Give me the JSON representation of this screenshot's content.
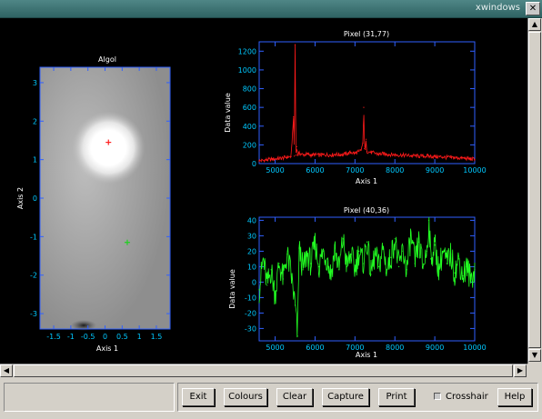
{
  "window": {
    "title": "xwindows",
    "close_glyph": "✕"
  },
  "image_panel": {
    "title": "Algol",
    "xlabel": "Axis 1",
    "ylabel": "Axis 2",
    "xticks": [
      "-1.5",
      "-1",
      "-0.5",
      "0",
      "0.5",
      "1",
      "1.5"
    ],
    "yticks": [
      "3",
      "2",
      "1",
      "0",
      "-1",
      "-2",
      "-3"
    ],
    "xlim": [
      -1.9,
      1.9
    ],
    "ylim": [
      -3.4,
      3.4
    ],
    "red_marker": {
      "x": 0.1,
      "y": 1.45
    },
    "green_marker": {
      "x": 0.65,
      "y": -1.15
    },
    "marker_colors": {
      "red": "#ff2020",
      "green": "#20d020"
    }
  },
  "chart_data": [
    {
      "type": "line",
      "title": "Pixel (31,77)",
      "xlabel": "Axis 1",
      "ylabel": "Data value",
      "xlim": [
        4600,
        10000
      ],
      "ylim": [
        0,
        1300
      ],
      "xticks": [
        "5000",
        "6000",
        "7000",
        "8000",
        "9000",
        "10000"
      ],
      "yticks": [
        "0",
        "200",
        "400",
        "600",
        "800",
        "1000",
        "1200"
      ],
      "color": "#ff1a1a",
      "x": [
        4600,
        4800,
        5000,
        5200,
        5300,
        5400,
        5460,
        5480,
        5500,
        5520,
        5540,
        5560,
        5600,
        5700,
        5800,
        5900,
        6000,
        6100,
        6200,
        6300,
        6400,
        6500,
        6600,
        6700,
        6800,
        6900,
        7000,
        7100,
        7150,
        7200,
        7220,
        7240,
        7260,
        7280,
        7300,
        7400,
        7500,
        7600,
        7700,
        7800,
        8000,
        8200,
        8400,
        8600,
        8800,
        9000,
        9200,
        9400,
        9600,
        9800,
        10000
      ],
      "y": [
        30,
        40,
        50,
        60,
        70,
        75,
        500,
        80,
        1270,
        90,
        180,
        90,
        110,
        95,
        100,
        90,
        95,
        90,
        95,
        95,
        90,
        100,
        95,
        100,
        105,
        120,
        110,
        130,
        140,
        220,
        600,
        160,
        150,
        260,
        130,
        120,
        110,
        100,
        105,
        100,
        95,
        90,
        85,
        80,
        80,
        75,
        70,
        65,
        60,
        55,
        45
      ]
    },
    {
      "type": "line",
      "title": "Pixel (40,36)",
      "xlabel": "Axis 1",
      "ylabel": "Data value",
      "xlim": [
        4600,
        10000
      ],
      "ylim": [
        -38,
        42
      ],
      "xticks": [
        "5000",
        "6000",
        "7000",
        "8000",
        "9000",
        "10000"
      ],
      "yticks": [
        "40",
        "30",
        "20",
        "10",
        "0",
        "-10",
        "-20",
        "-30"
      ],
      "color": "#22ff22",
      "x": [
        4600,
        4700,
        4800,
        4900,
        5000,
        5100,
        5200,
        5300,
        5400,
        5500,
        5560,
        5600,
        5700,
        5800,
        5900,
        6000,
        6100,
        6200,
        6300,
        6400,
        6500,
        6600,
        6700,
        6800,
        6900,
        7000,
        7100,
        7200,
        7300,
        7400,
        7500,
        7600,
        7700,
        7800,
        7900,
        8000,
        8100,
        8200,
        8300,
        8400,
        8500,
        8600,
        8700,
        8800,
        8850,
        8900,
        9000,
        9100,
        9200,
        9300,
        9400,
        9500,
        9600,
        9700,
        9800,
        9900,
        10000
      ],
      "y": [
        -5,
        15,
        -2,
        8,
        -8,
        12,
        2,
        18,
        5,
        -15,
        -35,
        22,
        8,
        18,
        12,
        25,
        10,
        20,
        15,
        5,
        22,
        8,
        28,
        10,
        18,
        8,
        20,
        12,
        26,
        5,
        18,
        10,
        22,
        8,
        16,
        28,
        10,
        20,
        8,
        30,
        12,
        26,
        10,
        20,
        40,
        15,
        24,
        8,
        20,
        12,
        18,
        6,
        15,
        4,
        10,
        2,
        8
      ]
    }
  ],
  "toolbar": {
    "exit_label": "Exit",
    "colours_label": "Colours",
    "clear_label": "Clear",
    "capture_label": "Capture",
    "print_label": "Print",
    "crosshair_label": "Crosshair",
    "help_label": "Help"
  },
  "scrollbars": {
    "up": "▲",
    "down": "▼",
    "left": "◀",
    "right": "▶"
  }
}
